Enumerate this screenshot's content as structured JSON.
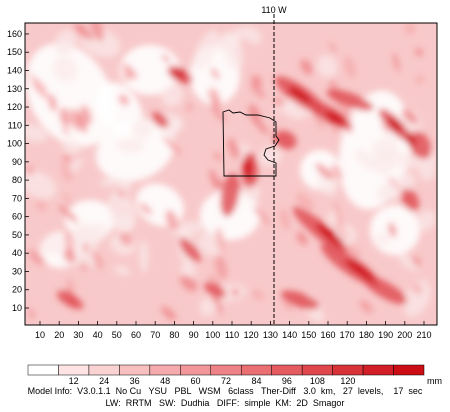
{
  "map": {
    "meridian_label": "110 W",
    "x_ticks": [
      "10",
      "20",
      "30",
      "40",
      "50",
      "60",
      "70",
      "80",
      "90",
      "100",
      "110",
      "120",
      "130",
      "140",
      "150",
      "160",
      "170",
      "180",
      "190",
      "200",
      "210"
    ],
    "y_ticks": [
      "10",
      "20",
      "30",
      "40",
      "50",
      "60",
      "70",
      "80",
      "90",
      "100",
      "110",
      "120",
      "130",
      "140",
      "150",
      "160"
    ],
    "color_scale": {
      "labels": [
        "12",
        "24",
        "36",
        "48",
        "60",
        "72",
        "84",
        "96",
        "108",
        "120"
      ],
      "unit": "mm",
      "colors": [
        "#ffffff",
        "#fde3e3",
        "#fbd2d2",
        "#f8bfc0",
        "#f5abad",
        "#f1979a",
        "#ed8386",
        "#e96f73",
        "#e45b60",
        "#df474d",
        "#d9333a",
        "#d21f27",
        "#cc0d14"
      ]
    }
  },
  "info": {
    "line1": "Model Info:  V3.0.1.1  No Cu   YSU   PBL   WSM   6class   Ther-Diff   3.0  km,   27  levels,    17  sec",
    "line2": "LW:  RRTM   SW:  Dudhia   DIFF:  simple  KM:  2D  Smagor"
  }
}
